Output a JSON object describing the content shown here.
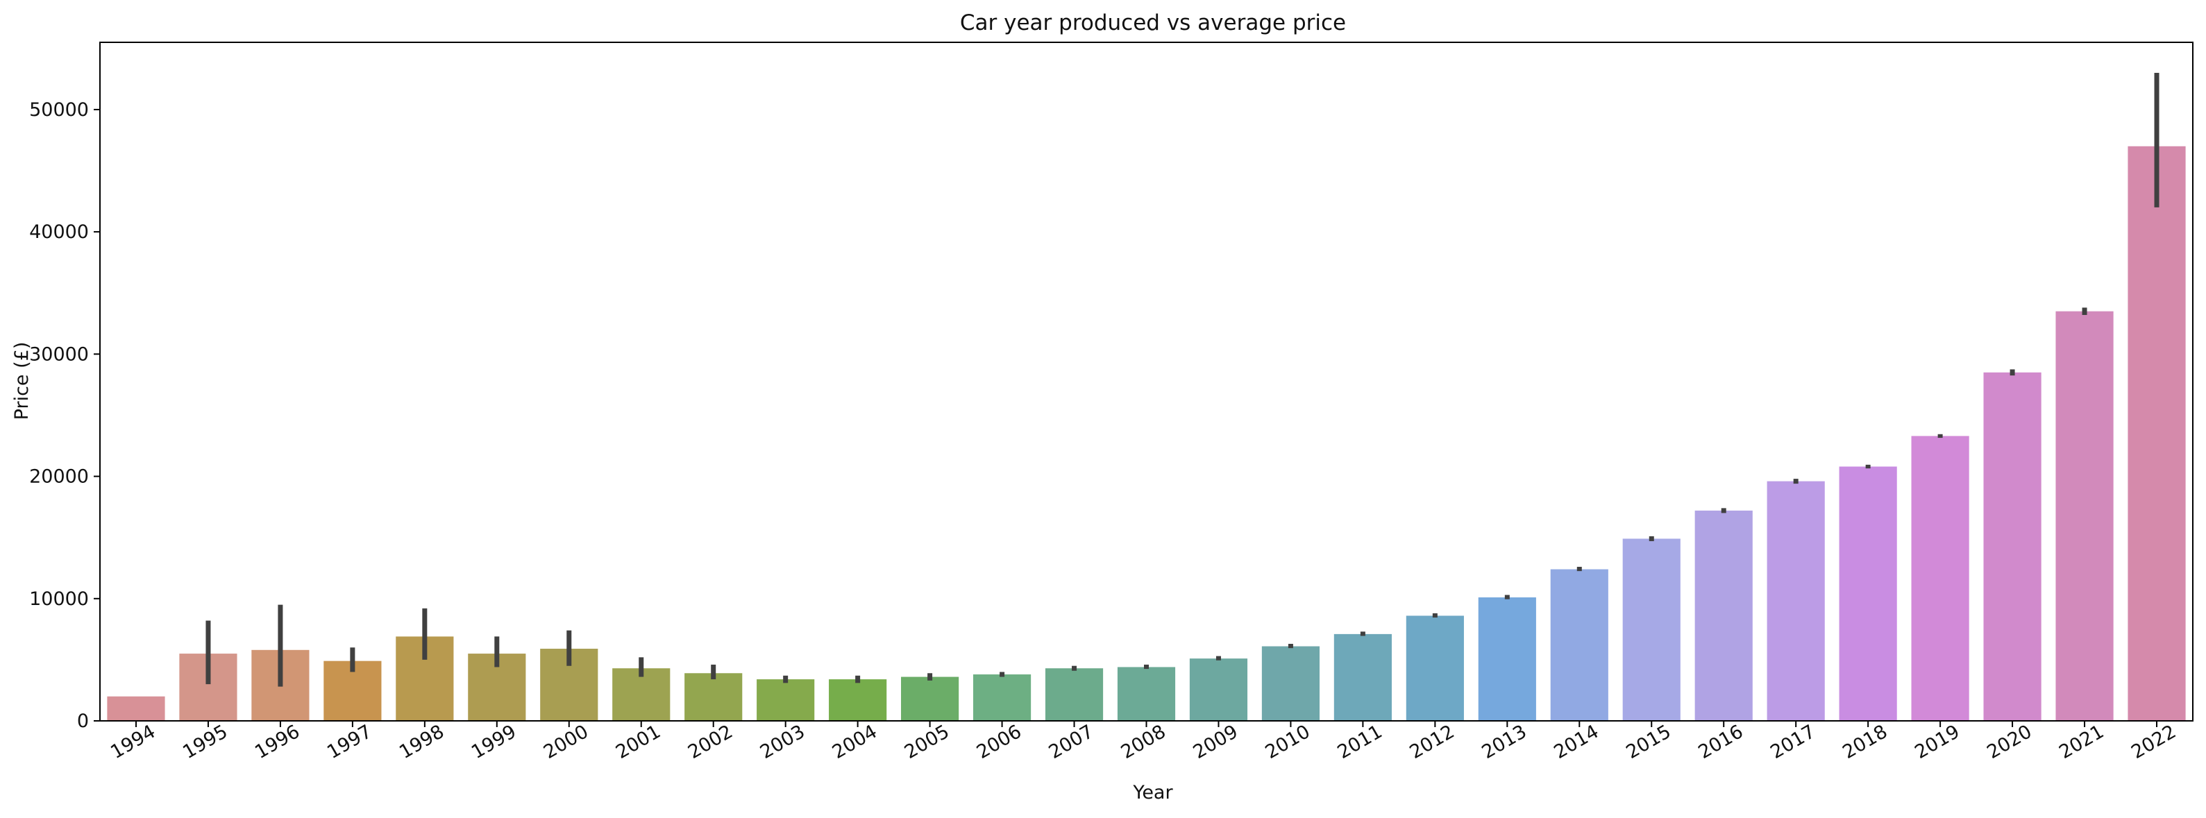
{
  "chart_data": {
    "type": "bar",
    "title": "Car year produced vs average price",
    "xlabel": "Year",
    "ylabel": "Price (£)",
    "ylim": [
      0,
      55500
    ],
    "yticks": [
      0,
      10000,
      20000,
      30000,
      40000,
      50000
    ],
    "ytick_labels": [
      "0",
      "10000",
      "20000",
      "30000",
      "40000",
      "50000"
    ],
    "grid": false,
    "legend": "none",
    "categories": [
      "1994",
      "1995",
      "1996",
      "1997",
      "1998",
      "1999",
      "2000",
      "2001",
      "2002",
      "2003",
      "2004",
      "2005",
      "2006",
      "2007",
      "2008",
      "2009",
      "2010",
      "2011",
      "2012",
      "2013",
      "2014",
      "2015",
      "2016",
      "2017",
      "2018",
      "2019",
      "2020",
      "2021",
      "2022"
    ],
    "values": [
      2000,
      5500,
      5800,
      4900,
      6900,
      5500,
      5900,
      4300,
      3900,
      3400,
      3400,
      3600,
      3800,
      4300,
      4400,
      5100,
      6100,
      7100,
      8600,
      10100,
      12400,
      14900,
      17200,
      19600,
      20800,
      23300,
      28500,
      33500,
      47000
    ],
    "error_low": [
      null,
      3000,
      2800,
      4000,
      5000,
      4400,
      4500,
      3600,
      3400,
      3100,
      3100,
      3300,
      3600,
      4100,
      4250,
      4950,
      5950,
      6950,
      8450,
      9950,
      12250,
      14700,
      17000,
      19400,
      20650,
      23150,
      28250,
      33200,
      42000
    ],
    "error_high": [
      null,
      8200,
      9500,
      6000,
      9200,
      6900,
      7400,
      5200,
      4600,
      3700,
      3700,
      3900,
      4000,
      4500,
      4600,
      5300,
      6300,
      7300,
      8800,
      10300,
      12600,
      15100,
      17400,
      19800,
      20950,
      23450,
      28750,
      33800,
      53000
    ],
    "colors": [
      "#d89197",
      "#d4968a",
      "#d19674",
      "#c8944f",
      "#b89a4f",
      "#ae9c51",
      "#a89e52",
      "#9da351",
      "#93a64f",
      "#85aa4c",
      "#76ad4b",
      "#6bad68",
      "#6daf83",
      "#6cab8c",
      "#6caa96",
      "#6da8a0",
      "#6fa7aa",
      "#6ea8b9",
      "#6ea8c6",
      "#76a8dd",
      "#91a9e3",
      "#a6a9e6",
      "#b0a3e4",
      "#bc9ce6",
      "#c98de2",
      "#d28ad8",
      "#d18acc",
      "#d28abb",
      "#d58aab"
    ],
    "error_color": "#404040"
  }
}
